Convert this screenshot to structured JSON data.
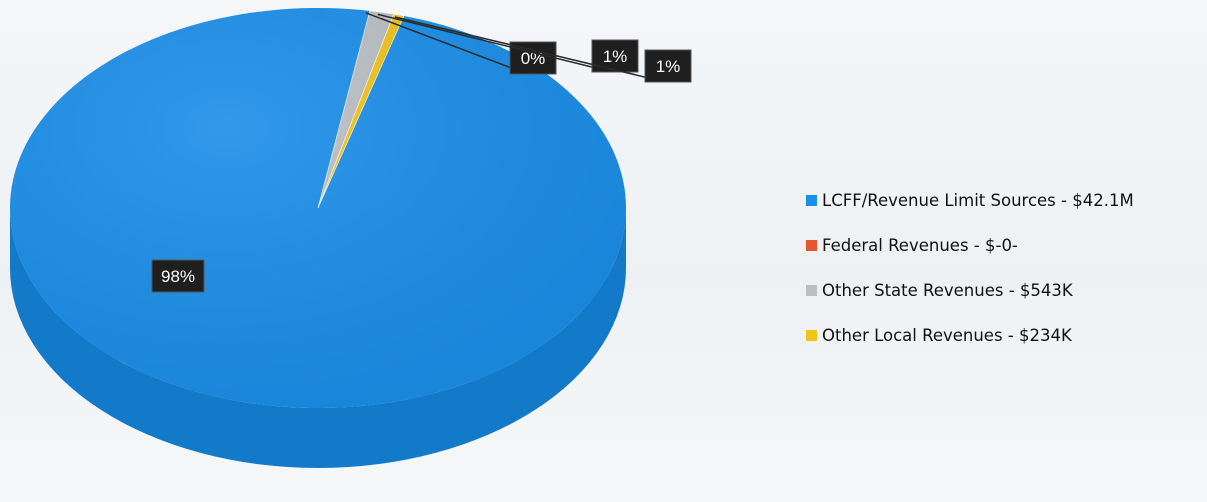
{
  "colors": {
    "lcff": "#1b8ee8",
    "lcff_side": "#1379c9",
    "federal": "#e4572e",
    "other_state": "#b9bfc4",
    "other_local": "#f0c419"
  },
  "chart_data": {
    "type": "pie",
    "title": "",
    "series": [
      {
        "name": "LCFF/Revenue Limit Sources - $42.1M",
        "value": 42100000,
        "percent_label": "98%",
        "color_key": "lcff"
      },
      {
        "name": "Federal Revenues - $-0-",
        "value": 0,
        "percent_label": "0%",
        "color_key": "federal"
      },
      {
        "name": "Other State Revenues - $543K",
        "value": 543000,
        "percent_label": "1%",
        "color_key": "other_state"
      },
      {
        "name": "Other Local Revenues - $234K",
        "value": 234000,
        "percent_label": "1%",
        "color_key": "other_local"
      }
    ],
    "legend_position": "right"
  }
}
